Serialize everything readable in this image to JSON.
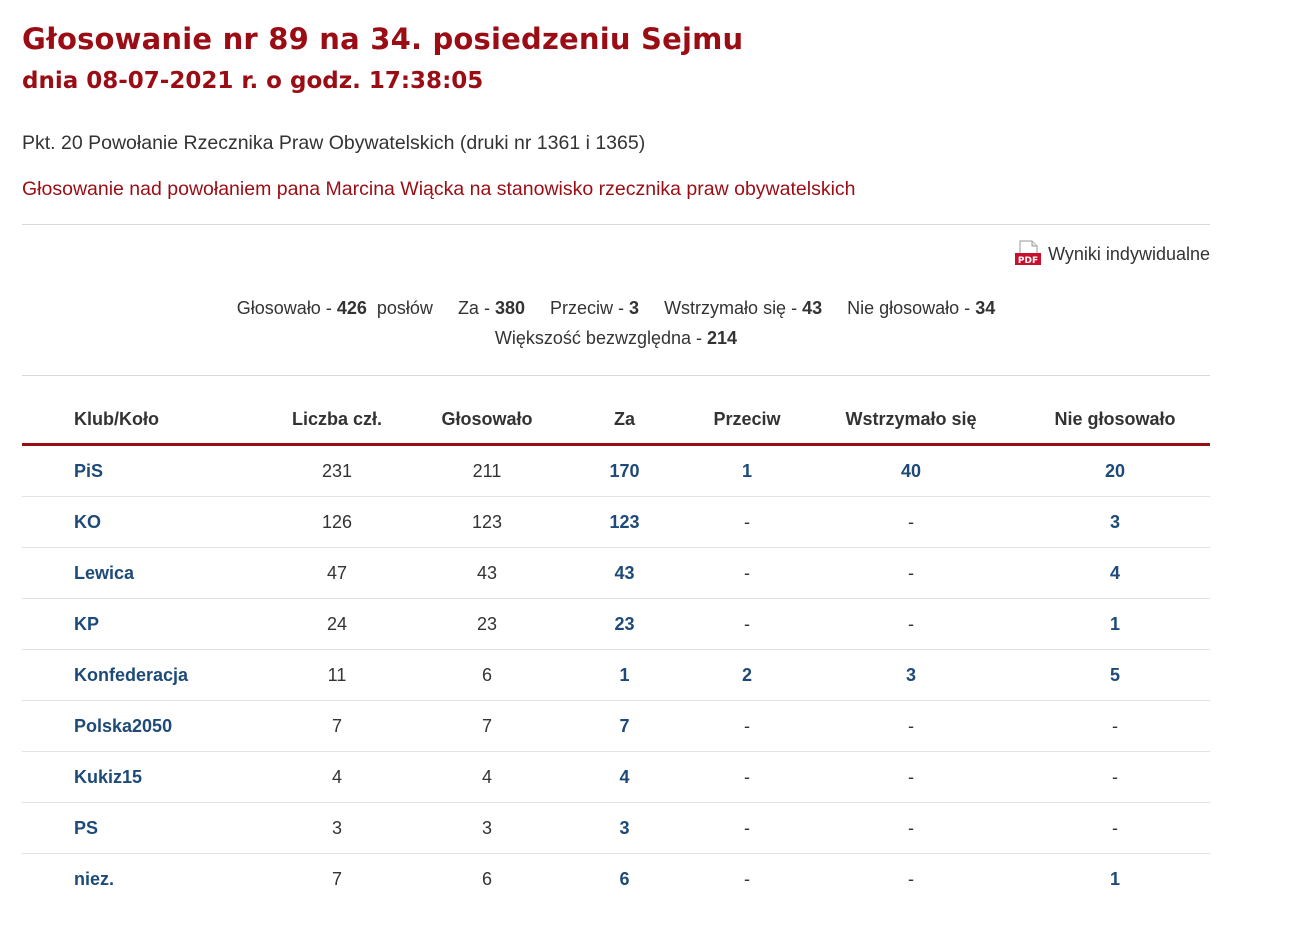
{
  "header": {
    "title": "Głosowanie nr 89 na 34. posiedzeniu Sejmu",
    "subtitle": "dnia 08-07-2021 r. o godz. 17:38:05"
  },
  "agenda": {
    "item": "Pkt. 20 Powołanie Rzecznika Praw Obywatelskich (druki nr 1361 i 1365)",
    "topic": "Głosowanie nad powołaniem pana Marcina Wiącka na stanowisko rzecznika praw obywatelskich"
  },
  "pdf_link": {
    "icon": "pdf-icon",
    "label": "Wyniki indywidualne"
  },
  "summary": {
    "glosowalo_label": "Głosowało - ",
    "glosowalo_value": "426",
    "poslow_label": "posłów",
    "za_label": "Za - ",
    "za_value": "380",
    "przeciw_label": "Przeciw - ",
    "przeciw_value": "3",
    "wstrzymalo_label": "Wstrzymało się - ",
    "wstrzymalo_value": "43",
    "nie_glosowalo_label": "Nie głosowało - ",
    "nie_glosowalo_value": "34",
    "wiekszosc_label": "Większość bezwzględna - ",
    "wiekszosc_value": "214"
  },
  "table": {
    "headers": {
      "club": "Klub/Koło",
      "liczba": "Liczba czł.",
      "glosowalo": "Głosowało",
      "za": "Za",
      "przeciw": "Przeciw",
      "wstrzymalo": "Wstrzymało się",
      "nie_glosowalo": "Nie głosowało"
    },
    "rows": [
      {
        "club": "PiS",
        "liczba": "231",
        "glosowalo": "211",
        "za": "170",
        "przeciw": "1",
        "wstrzymalo": "40",
        "nie_glosowalo": "20"
      },
      {
        "club": "KO",
        "liczba": "126",
        "glosowalo": "123",
        "za": "123",
        "przeciw": "-",
        "wstrzymalo": "-",
        "nie_glosowalo": "3"
      },
      {
        "club": "Lewica",
        "liczba": "47",
        "glosowalo": "43",
        "za": "43",
        "przeciw": "-",
        "wstrzymalo": "-",
        "nie_glosowalo": "4"
      },
      {
        "club": "KP",
        "liczba": "24",
        "glosowalo": "23",
        "za": "23",
        "przeciw": "-",
        "wstrzymalo": "-",
        "nie_glosowalo": "1"
      },
      {
        "club": "Konfederacja",
        "liczba": "11",
        "glosowalo": "6",
        "za": "1",
        "przeciw": "2",
        "wstrzymalo": "3",
        "nie_glosowalo": "5"
      },
      {
        "club": "Polska2050",
        "liczba": "7",
        "glosowalo": "7",
        "za": "7",
        "przeciw": "-",
        "wstrzymalo": "-",
        "nie_glosowalo": "-"
      },
      {
        "club": "Kukiz15",
        "liczba": "4",
        "glosowalo": "4",
        "za": "4",
        "przeciw": "-",
        "wstrzymalo": "-",
        "nie_glosowalo": "-"
      },
      {
        "club": "PS",
        "liczba": "3",
        "glosowalo": "3",
        "za": "3",
        "przeciw": "-",
        "wstrzymalo": "-",
        "nie_glosowalo": "-"
      },
      {
        "club": "niez.",
        "liczba": "7",
        "glosowalo": "6",
        "za": "6",
        "przeciw": "-",
        "wstrzymalo": "-",
        "nie_glosowalo": "1"
      }
    ]
  },
  "colors": {
    "title_red": "#9b0d14",
    "link_blue": "#1d4a78",
    "text": "#333333"
  }
}
